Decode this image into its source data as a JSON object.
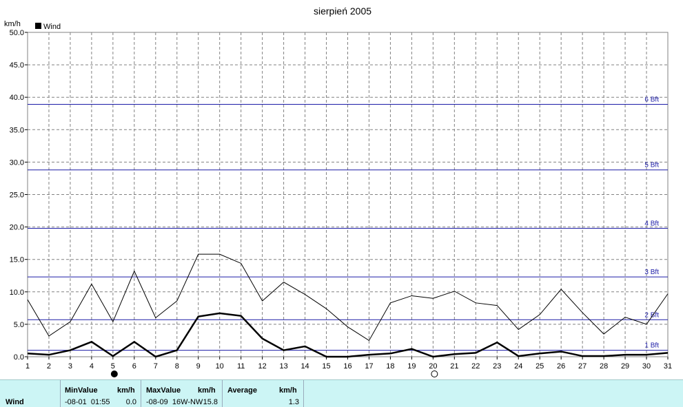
{
  "chart_data": {
    "type": "line",
    "title": "sierpień 2005",
    "ylabel": "km/h",
    "xlabel": "",
    "legend": {
      "label": "Wind",
      "placement": "top-left",
      "color": "#000000"
    },
    "ylim": [
      0,
      50
    ],
    "yticks": [
      "0.0",
      "5.0",
      "10.0",
      "15.0",
      "20.0",
      "25.0",
      "30.0",
      "35.0",
      "40.0",
      "45.0",
      "50.0"
    ],
    "x": [
      1,
      2,
      3,
      4,
      5,
      6,
      7,
      8,
      9,
      10,
      11,
      12,
      13,
      14,
      15,
      16,
      17,
      18,
      19,
      20,
      21,
      22,
      23,
      24,
      25,
      26,
      27,
      28,
      29,
      30,
      31
    ],
    "grid": true,
    "series": [
      {
        "style": "thin-black",
        "values": [
          8.8,
          3.2,
          5.4,
          11.2,
          5.4,
          13.2,
          6.0,
          8.6,
          15.8,
          15.8,
          14.4,
          8.6,
          11.5,
          9.6,
          7.4,
          4.6,
          2.5,
          8.3,
          9.4,
          9.0,
          10.1,
          8.3,
          7.9,
          4.2,
          6.5,
          10.4,
          6.8,
          3.5,
          6.1,
          5.0,
          9.7
        ]
      },
      {
        "style": "thick-black",
        "values": [
          0.5,
          0.3,
          1.0,
          2.3,
          0.1,
          2.3,
          0.0,
          1.0,
          6.2,
          6.7,
          6.3,
          2.8,
          1.0,
          1.6,
          0.0,
          0.0,
          0.3,
          0.5,
          1.2,
          0.0,
          0.4,
          0.6,
          2.2,
          0.1,
          0.5,
          0.8,
          0.1,
          0.1,
          0.3,
          0.3,
          0.6
        ]
      }
    ],
    "reference_lines": [
      {
        "label": "1 Bft",
        "value": 1.0
      },
      {
        "label": "2 Bft",
        "value": 5.7
      },
      {
        "label": "3 Bft",
        "value": 12.3
      },
      {
        "label": "4 Bft",
        "value": 19.8
      },
      {
        "label": "5 Bft",
        "value": 28.8
      },
      {
        "label": "6 Bft",
        "value": 38.9
      }
    ],
    "reference_line_color": "#1a1aa6",
    "moon_phases": [
      {
        "day": 5,
        "phase": "new"
      },
      {
        "day": 20,
        "phase": "full"
      }
    ]
  },
  "stats_panel": {
    "row_label": "Wind",
    "min": {
      "header": "MinValue",
      "unit": "km/h",
      "when": "-08-01  01:55",
      "value": "0.0"
    },
    "max": {
      "header": "MaxValue",
      "unit": "km/h",
      "when": "-08-09  16W-NW",
      "value": "15.8"
    },
    "avg": {
      "header": "Average",
      "unit": "km/h",
      "value": "1.3"
    }
  }
}
